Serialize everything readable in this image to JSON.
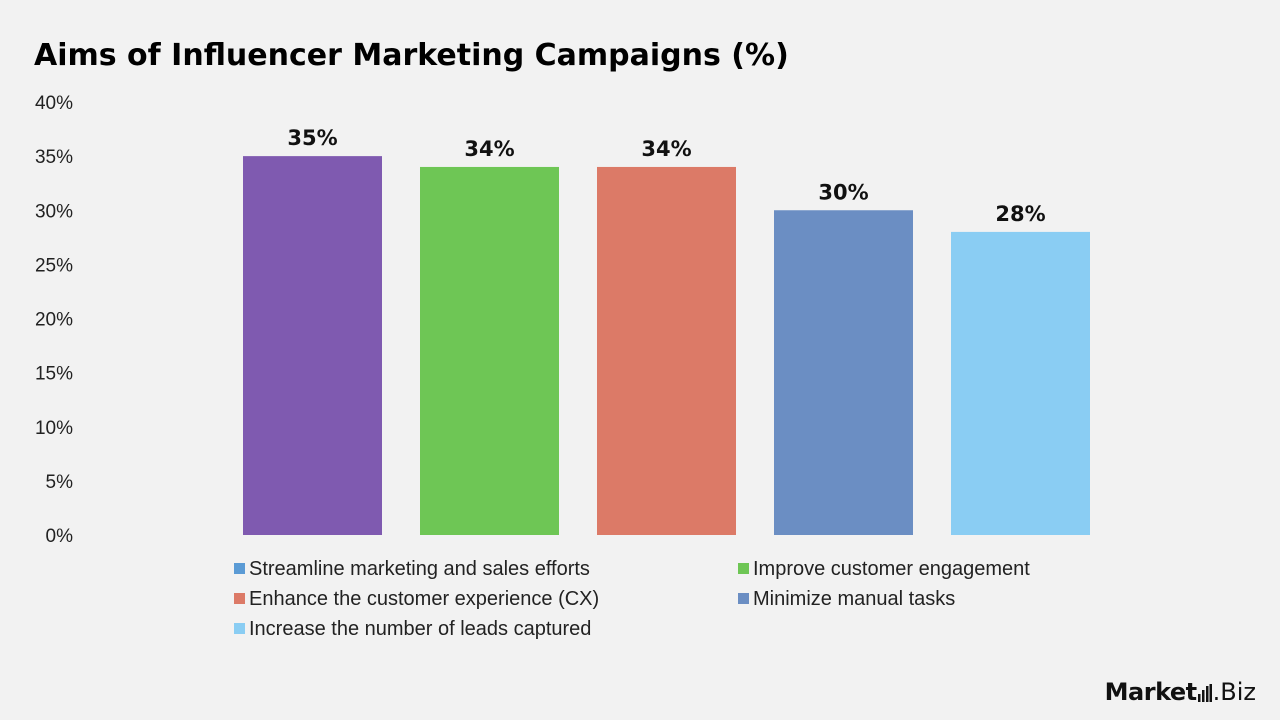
{
  "header": {
    "title": "Aims of Influencer Marketing Campaigns (%)"
  },
  "logo": {
    "brand": "Market",
    "suffix": ".Biz"
  },
  "chart_data": {
    "type": "bar",
    "title": "Aims of Influencer Marketing Campaigns (%)",
    "categories": [
      "Streamline marketing and sales efforts",
      "Improve customer engagement",
      "Enhance the customer experience (CX)",
      "Minimize manual tasks",
      "Increase the number of leads captured"
    ],
    "values": [
      35,
      34,
      34,
      30,
      28
    ],
    "data_labels": [
      "35%",
      "34%",
      "34%",
      "30%",
      "28%"
    ],
    "bar_colors": [
      "#7f5ab0",
      "#6ec655",
      "#dc7a67",
      "#6b8ec3",
      "#8acdf3"
    ],
    "legend_colors": [
      "#5b9bd5",
      "#6ec655",
      "#dc7a67",
      "#6b8ec3",
      "#8acdf3"
    ],
    "ylim": [
      0,
      40
    ],
    "yticks": [
      0,
      5,
      10,
      15,
      20,
      25,
      30,
      35,
      40
    ],
    "ytick_labels": [
      "0%",
      "5%",
      "10%",
      "15%",
      "20%",
      "25%",
      "30%",
      "35%",
      "40%"
    ],
    "grid": false,
    "legend_position": "bottom",
    "xlabel": "",
    "ylabel": ""
  }
}
